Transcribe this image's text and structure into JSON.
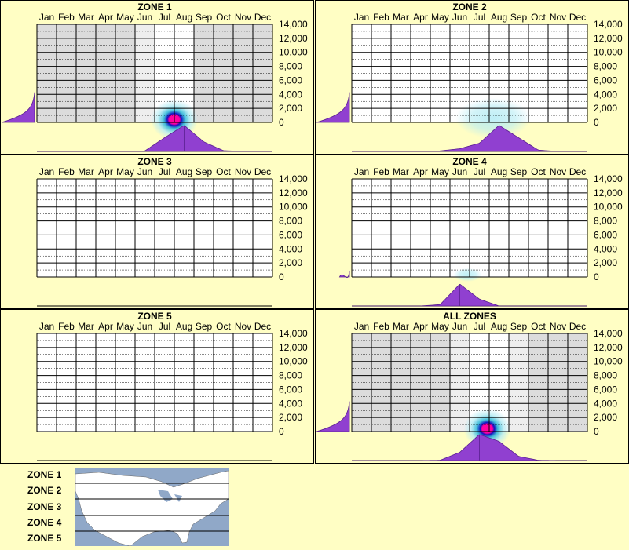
{
  "colors": {
    "background": "#fffec4",
    "panel_border": "#000000",
    "density": "#9040d0",
    "gray_band": "#dcdcdc",
    "light_gray_band": "#eeeeee",
    "heat_outer": "#b6ecf4",
    "heat_mid": "#30b8d8",
    "heat_core_blue": "#1010c0",
    "heat_core_red": "#ff00a0",
    "map_water": "#90a8c8",
    "map_land": "#ffffff"
  },
  "months": [
    "Jan",
    "Feb",
    "Mar",
    "Apr",
    "May",
    "Jun",
    "Jul",
    "Aug",
    "Sep",
    "Oct",
    "Nov",
    "Dec"
  ],
  "elevation_ticks": [
    "14,000",
    "12,000",
    "10,000",
    "8,000",
    "6,000",
    "4,000",
    "2,000",
    "0"
  ],
  "chart_data": [
    {
      "type": "heatmap",
      "title": "ZONE 1",
      "x_categories": [
        "Jan",
        "Feb",
        "Mar",
        "Apr",
        "May",
        "Jun",
        "Jul",
        "Aug",
        "Sep",
        "Oct",
        "Nov",
        "Dec"
      ],
      "y_axis": "elevation",
      "ylim": [
        0,
        14000
      ],
      "gray_months": [
        "Jan",
        "Feb",
        "Mar",
        "Apr",
        "May",
        "Sep",
        "Oct",
        "Nov",
        "Dec"
      ],
      "light_gray_months": [
        "Jun"
      ],
      "hotspot": {
        "month": 7.0,
        "elevation": 400,
        "intensity": 1.0,
        "spread_months": 1.0,
        "spread_elev": 1800
      },
      "month_distribution": [
        0,
        0,
        0,
        0,
        0,
        0.02,
        0.5,
        0.95,
        0.35,
        0.03,
        0,
        0
      ],
      "elevation_distribution": {
        "max_elevation": 4300,
        "peak_at_ground": 1.0
      }
    },
    {
      "type": "heatmap",
      "title": "ZONE 2",
      "x_categories": [
        "Jan",
        "Feb",
        "Mar",
        "Apr",
        "May",
        "Jun",
        "Jul",
        "Aug",
        "Sep",
        "Oct",
        "Nov",
        "Dec"
      ],
      "y_axis": "elevation",
      "ylim": [
        0,
        14000
      ],
      "gray_months": [],
      "light_gray_months": [],
      "hotspot": {
        "month": 7.2,
        "elevation": 600,
        "intensity": 0.3,
        "spread_months": 1.6,
        "spread_elev": 1800
      },
      "month_distribution": [
        0,
        0,
        0,
        0,
        0.02,
        0.1,
        0.3,
        0.95,
        0.5,
        0.05,
        0,
        0
      ],
      "elevation_distribution": {
        "max_elevation": 4300,
        "peak_at_ground": 1.0
      }
    },
    {
      "type": "heatmap",
      "title": "ZONE 3",
      "x_categories": [
        "Jan",
        "Feb",
        "Mar",
        "Apr",
        "May",
        "Jun",
        "Jul",
        "Aug",
        "Sep",
        "Oct",
        "Nov",
        "Dec"
      ],
      "y_axis": "elevation",
      "ylim": [
        0,
        14000
      ],
      "gray_months": [],
      "light_gray_months": [],
      "hotspot": null,
      "month_distribution": [],
      "elevation_distribution": null
    },
    {
      "type": "heatmap",
      "title": "ZONE 4",
      "x_categories": [
        "Jan",
        "Feb",
        "Mar",
        "Apr",
        "May",
        "Jun",
        "Jul",
        "Aug",
        "Sep",
        "Oct",
        "Nov",
        "Dec"
      ],
      "y_axis": "elevation",
      "ylim": [
        0,
        14000
      ],
      "gray_months": [],
      "light_gray_months": [],
      "hotspot": {
        "month": 5.9,
        "elevation": 300,
        "intensity": 0.3,
        "spread_months": 0.6,
        "spread_elev": 600
      },
      "month_distribution": [
        0,
        0,
        0,
        0,
        0.05,
        0.8,
        0.25,
        0,
        0,
        0,
        0,
        0
      ],
      "elevation_distribution": {
        "max_elevation": 900,
        "peak_at_ground": 0.3
      }
    },
    {
      "type": "heatmap",
      "title": "ZONE 5",
      "x_categories": [
        "Jan",
        "Feb",
        "Mar",
        "Apr",
        "May",
        "Jun",
        "Jul",
        "Aug",
        "Sep",
        "Oct",
        "Nov",
        "Dec"
      ],
      "y_axis": "elevation",
      "ylim": [
        0,
        14000
      ],
      "gray_months": [],
      "light_gray_months": [],
      "hotspot": null,
      "month_distribution": [],
      "elevation_distribution": null
    },
    {
      "type": "heatmap",
      "title": "ALL ZONES",
      "x_categories": [
        "Jan",
        "Feb",
        "Mar",
        "Apr",
        "May",
        "Jun",
        "Jul",
        "Aug",
        "Sep",
        "Oct",
        "Nov",
        "Dec"
      ],
      "y_axis": "elevation",
      "ylim": [
        0,
        14000
      ],
      "gray_months": [
        "Jan",
        "Feb",
        "Mar",
        "Apr",
        "May",
        "Oct",
        "Nov",
        "Dec"
      ],
      "light_gray_months": [
        "Jun",
        "Sep"
      ],
      "hotspot": {
        "month": 6.9,
        "elevation": 400,
        "intensity": 1.0,
        "spread_months": 1.0,
        "spread_elev": 1800
      },
      "month_distribution": [
        0,
        0,
        0,
        0,
        0.01,
        0.3,
        0.95,
        0.7,
        0.15,
        0.01,
        0,
        0
      ],
      "elevation_distribution": {
        "max_elevation": 4300,
        "peak_at_ground": 1.0
      }
    }
  ],
  "legend": {
    "zones": [
      "ZONE 1",
      "ZONE 2",
      "ZONE 3",
      "ZONE 4",
      "ZONE 5"
    ]
  }
}
